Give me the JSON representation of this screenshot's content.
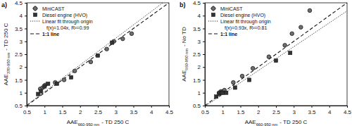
{
  "chart_data": [
    {
      "type": "scatter",
      "panel_label": "a)",
      "xlabel": [
        "AAE",
        "660-950 nm",
        "- TD 250 C"
      ],
      "ylabel": [
        "AAE",
        "370-950 nm",
        "- TD 250 C"
      ],
      "xlim": [
        0.5,
        4.5
      ],
      "ylim": [
        0.5,
        4.5
      ],
      "xticks": [
        0.5,
        1,
        1.5,
        2,
        2.5,
        3,
        3.5,
        4,
        4.5
      ],
      "yticks": [
        0.5,
        1,
        1.5,
        2,
        2.5,
        3,
        3.5,
        4,
        4.5
      ],
      "legend": "upper left",
      "series": [
        {
          "name": "MiniCAST",
          "color": "#6e6e6e",
          "marker": "circle",
          "x": [
            0.88,
            0.95,
            1.02,
            1.3,
            1.55,
            1.85,
            2.3,
            2.75,
            2.95,
            3.2,
            3.45
          ],
          "values": [
            1.15,
            1.2,
            1.3,
            1.4,
            1.5,
            1.85,
            2.2,
            2.7,
            3.0,
            3.1,
            3.3
          ],
          "x_err": [
            0.04,
            0.04,
            0.04,
            0.04,
            0.04,
            0.05,
            0.05,
            0.05,
            0.05,
            0.05,
            0.05
          ],
          "y_err": [
            0.05,
            0.05,
            0.05,
            0.05,
            0.05,
            0.05,
            0.06,
            0.06,
            0.06,
            0.06,
            0.06
          ]
        },
        {
          "name": "Diesel engine (HVO)",
          "color": "#333333",
          "marker": "square",
          "x": [
            0.82,
            0.9,
            1.0,
            1.1,
            1.35,
            1.75,
            2.5,
            2.9
          ],
          "values": [
            0.95,
            1.05,
            1.25,
            1.35,
            1.35,
            1.6,
            2.45,
            2.95
          ]
        }
      ],
      "fit": {
        "slope": 1.04,
        "label": [
          "Linear fit through origin",
          "f(x)=1.04x, R²=0.99"
        ],
        "line_style": "dotted"
      },
      "reference": {
        "label": "1:1 line",
        "line_style": "dashed"
      }
    },
    {
      "type": "scatter",
      "panel_label": "b)",
      "xlabel": [
        "AAE",
        "660-950 nm",
        "- TD 250 C"
      ],
      "ylabel": [
        "AAE",
        "660-950 nm",
        "- No TD"
      ],
      "xlim": [
        0.5,
        4.5
      ],
      "ylim": [
        0.5,
        4.5
      ],
      "xticks": [
        0.5,
        1,
        1.5,
        2,
        2.5,
        3,
        3.5,
        4,
        4.5
      ],
      "yticks": [
        0.5,
        1,
        1.5,
        2,
        2.5,
        3,
        3.5,
        4,
        4.5
      ],
      "legend": "upper left",
      "series": [
        {
          "name": "MiniCAST",
          "color": "#6e6e6e",
          "marker": "circle",
          "x": [
            0.9,
            0.95,
            1.0,
            1.05,
            1.3,
            1.55,
            1.85,
            2.3,
            2.75,
            2.95,
            3.2,
            3.45
          ],
          "values": [
            1.0,
            1.05,
            1.05,
            1.1,
            1.4,
            1.65,
            1.95,
            2.4,
            2.85,
            3.3,
            3.55,
            4.2
          ],
          "x_err": [
            0.04,
            0.04,
            0.04,
            0.04,
            0.04,
            0.04,
            0.05,
            0.05,
            0.05,
            0.05,
            0.05,
            0.05
          ],
          "y_err": [
            0.05,
            0.05,
            0.05,
            0.05,
            0.05,
            0.05,
            0.05,
            0.06,
            0.06,
            0.06,
            0.06,
            0.07
          ]
        },
        {
          "name": "Diesel engine (HVO)",
          "color": "#333333",
          "marker": "square",
          "x": [
            0.82,
            0.9,
            0.95,
            1.0,
            1.1,
            1.35,
            1.75,
            2.5,
            2.9
          ],
          "values": [
            0.85,
            0.95,
            1.0,
            1.0,
            1.0,
            1.2,
            1.5,
            2.25,
            2.55
          ]
        }
      ],
      "fit": {
        "slope": 0.93,
        "label": [
          "Linear fit through origin",
          "f(x)=0.93x, R²=0.81"
        ],
        "line_style": "dotted"
      },
      "reference": {
        "label": "1:1 line",
        "line_style": "dashed"
      }
    }
  ]
}
